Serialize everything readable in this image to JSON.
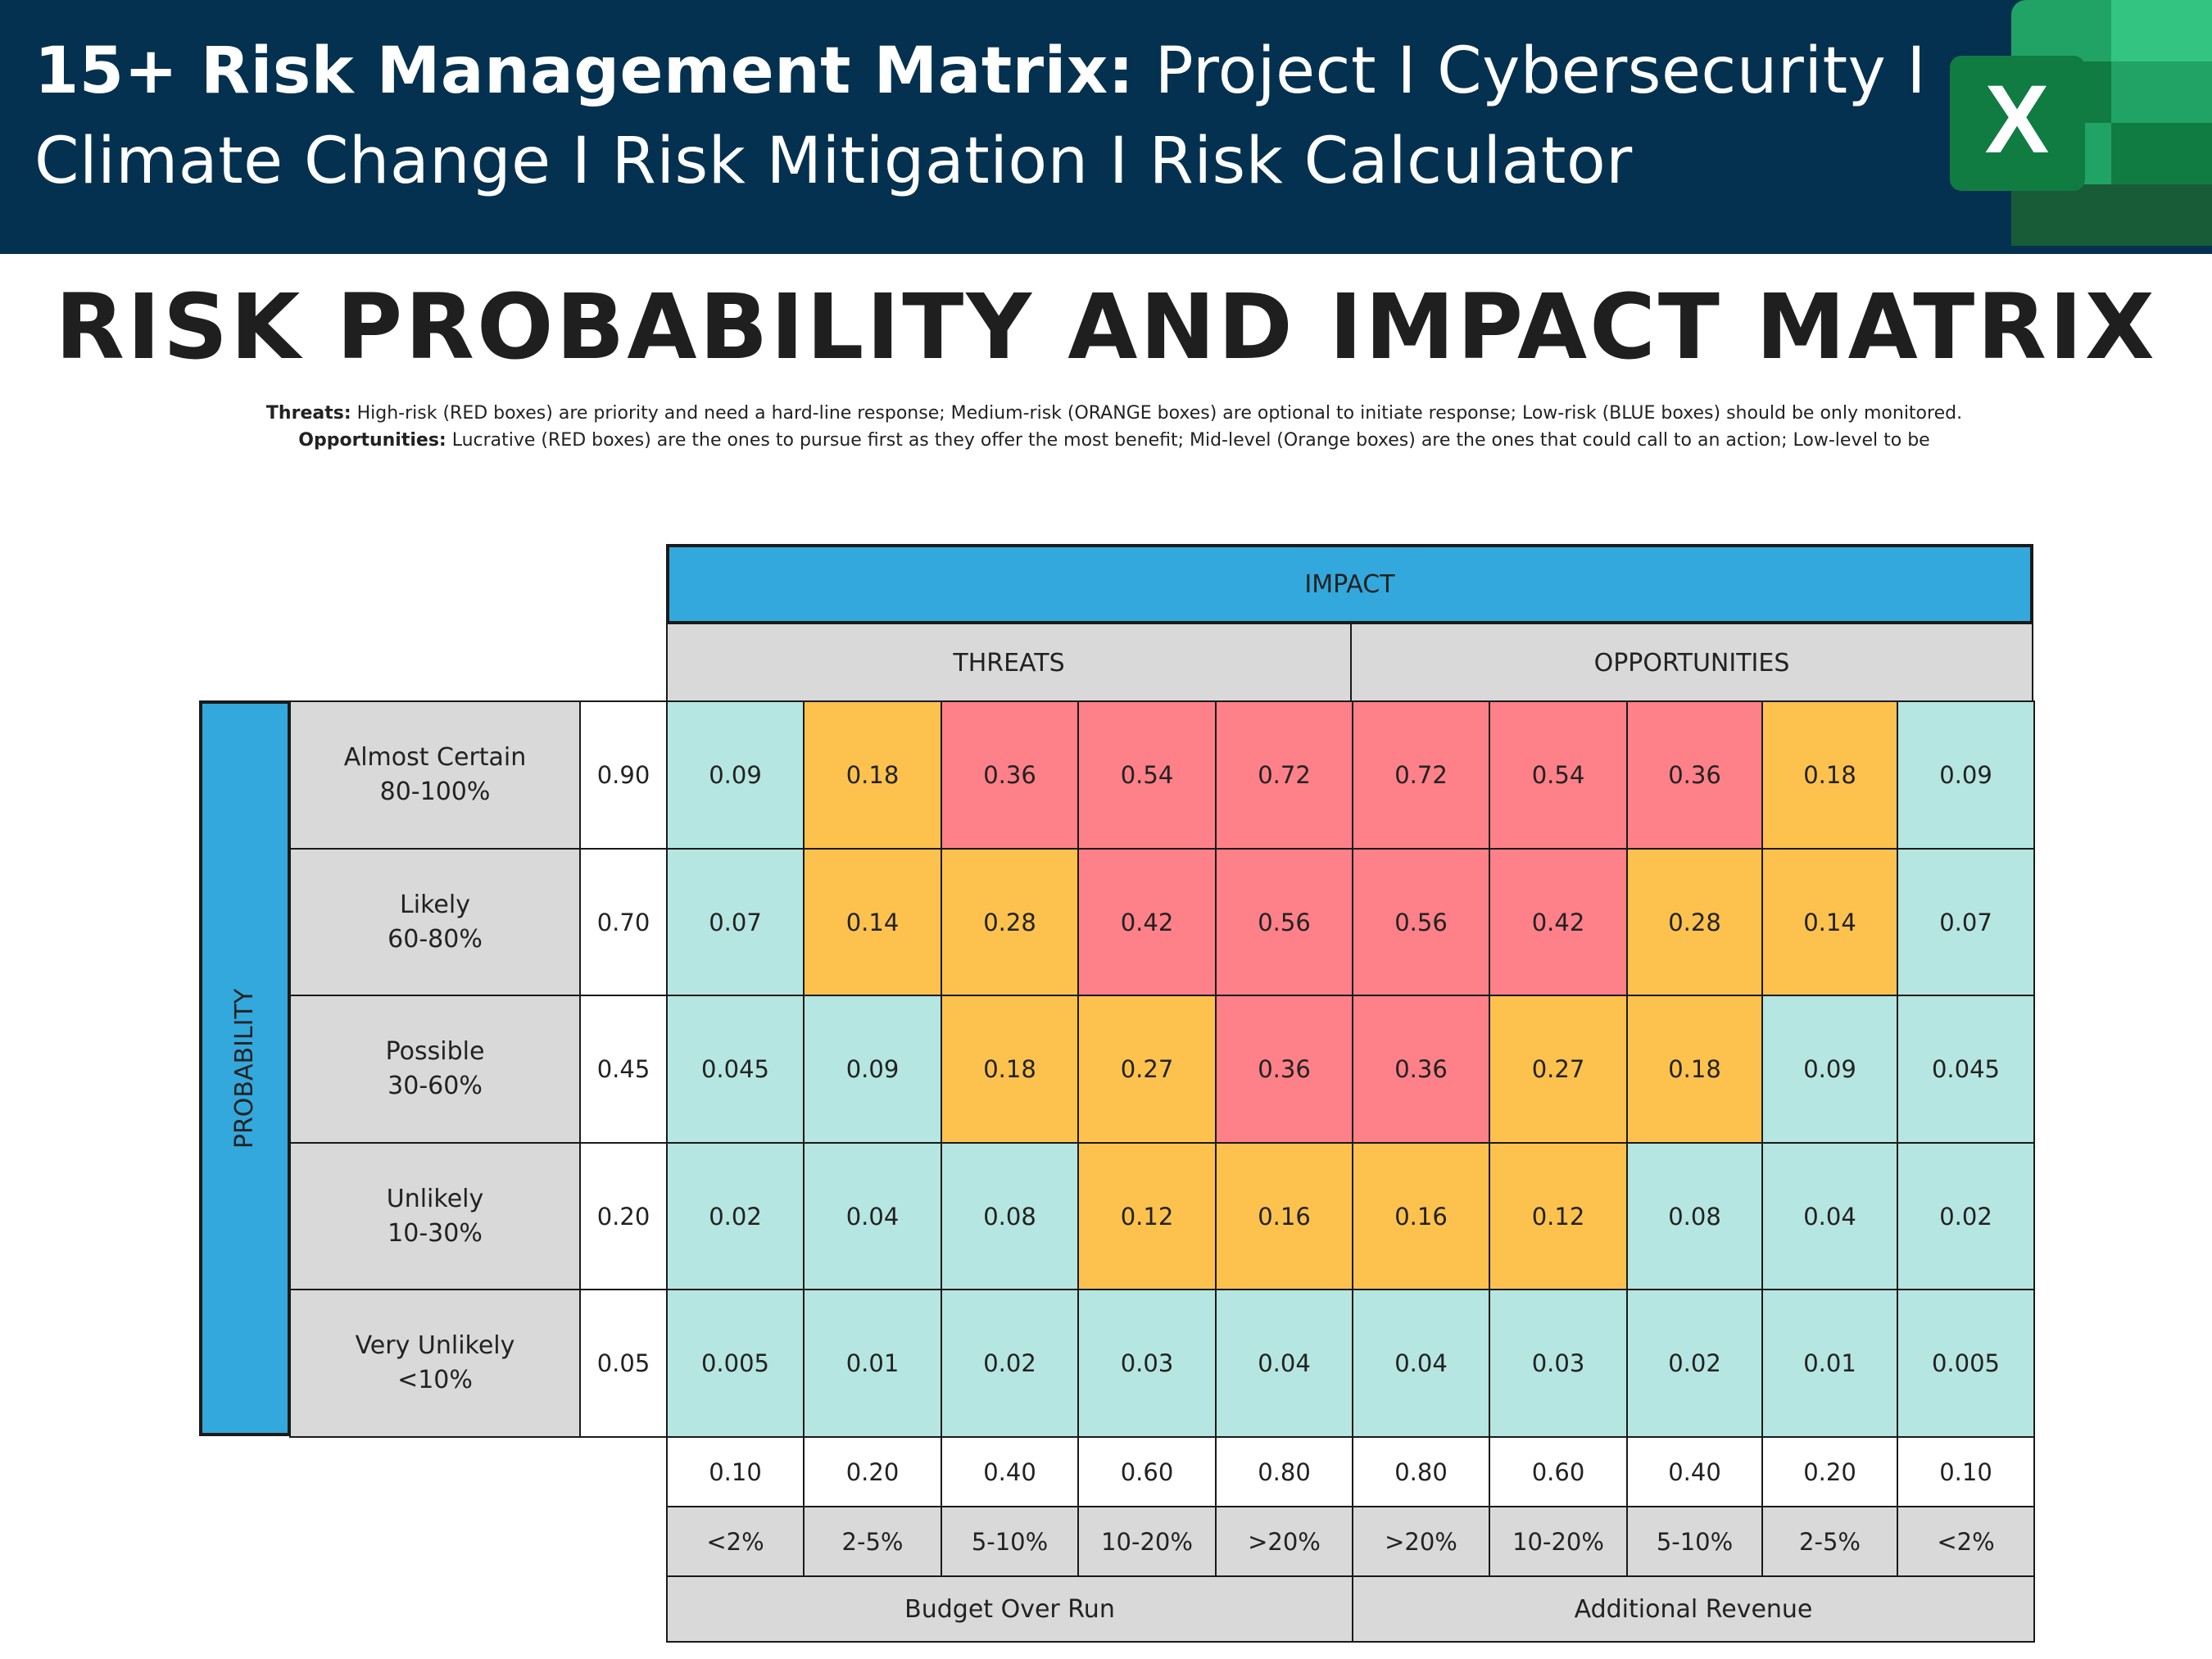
{
  "banner": {
    "line1_bold": "15+ Risk Management Matrix:",
    "line1_rest": " Project I Cybersecurity I",
    "line2": "Climate Change I Risk Mitigation I Risk Calculator",
    "icon": "excel-icon",
    "icon_letter": "X"
  },
  "title": "RISK PROBABILITY AND IMPACT MATRIX",
  "description": {
    "threats_label": "Threats:",
    "threats_text": " High-risk (RED boxes) are priority and need a hard-line response; Medium-risk (ORANGE boxes) are optional to initiate response; Low-risk (BLUE boxes) should be only monitored.",
    "opportunities_label": "Opportunities:",
    "opportunities_text": " Lucrative (RED boxes) are the ones to pursue first as they offer the most benefit; Mid-level (Orange boxes) are the ones that could call to an action; Low-level to be"
  },
  "matrix": {
    "impact_header": "IMPACT",
    "threats_header": "THREATS",
    "opportunities_header": "OPPORTUNITIES",
    "probability_label": "PROBABILITY",
    "colors": {
      "low": "#b6e6e1",
      "medium": "#fdc24e",
      "high": "#fe8089",
      "header_blue": "#33a8dc"
    },
    "rows": [
      {
        "name": "Almost Certain",
        "range": "80-100%",
        "prob": "0.90",
        "cells": [
          "0.09",
          "0.18",
          "0.36",
          "0.54",
          "0.72",
          "0.72",
          "0.54",
          "0.36",
          "0.18",
          "0.09"
        ],
        "levels": [
          "low",
          "med",
          "high",
          "high",
          "high",
          "high",
          "high",
          "high",
          "med",
          "low"
        ]
      },
      {
        "name": "Likely",
        "range": "60-80%",
        "prob": "0.70",
        "cells": [
          "0.07",
          "0.14",
          "0.28",
          "0.42",
          "0.56",
          "0.56",
          "0.42",
          "0.28",
          "0.14",
          "0.07"
        ],
        "levels": [
          "low",
          "med",
          "med",
          "high",
          "high",
          "high",
          "high",
          "med",
          "med",
          "low"
        ]
      },
      {
        "name": "Possible",
        "range": "30-60%",
        "prob": "0.45",
        "cells": [
          "0.045",
          "0.09",
          "0.18",
          "0.27",
          "0.36",
          "0.36",
          "0.27",
          "0.18",
          "0.09",
          "0.045"
        ],
        "levels": [
          "low",
          "low",
          "med",
          "med",
          "high",
          "high",
          "med",
          "med",
          "low",
          "low"
        ]
      },
      {
        "name": "Unlikely",
        "range": "10-30%",
        "prob": "0.20",
        "cells": [
          "0.02",
          "0.04",
          "0.08",
          "0.12",
          "0.16",
          "0.16",
          "0.12",
          "0.08",
          "0.04",
          "0.02"
        ],
        "levels": [
          "low",
          "low",
          "low",
          "med",
          "med",
          "med",
          "med",
          "low",
          "low",
          "low"
        ]
      },
      {
        "name": "Very Unlikely",
        "range": "<10%",
        "prob": "0.05",
        "cells": [
          "0.005",
          "0.01",
          "0.02",
          "0.03",
          "0.04",
          "0.04",
          "0.03",
          "0.02",
          "0.01",
          "0.005"
        ],
        "levels": [
          "low",
          "low",
          "low",
          "low",
          "low",
          "low",
          "low",
          "low",
          "low",
          "low"
        ]
      }
    ],
    "impact_values": [
      "0.10",
      "0.20",
      "0.40",
      "0.60",
      "0.80",
      "0.80",
      "0.60",
      "0.40",
      "0.20",
      "0.10"
    ],
    "impact_ranges": [
      "<2%",
      "2-5%",
      "5-10%",
      "10-20%",
      ">20%",
      ">20%",
      "10-20%",
      "5-10%",
      "2-5%",
      "<2%"
    ],
    "threats_footer": "Budget Over Run",
    "opportunities_footer": "Additional Revenue"
  }
}
